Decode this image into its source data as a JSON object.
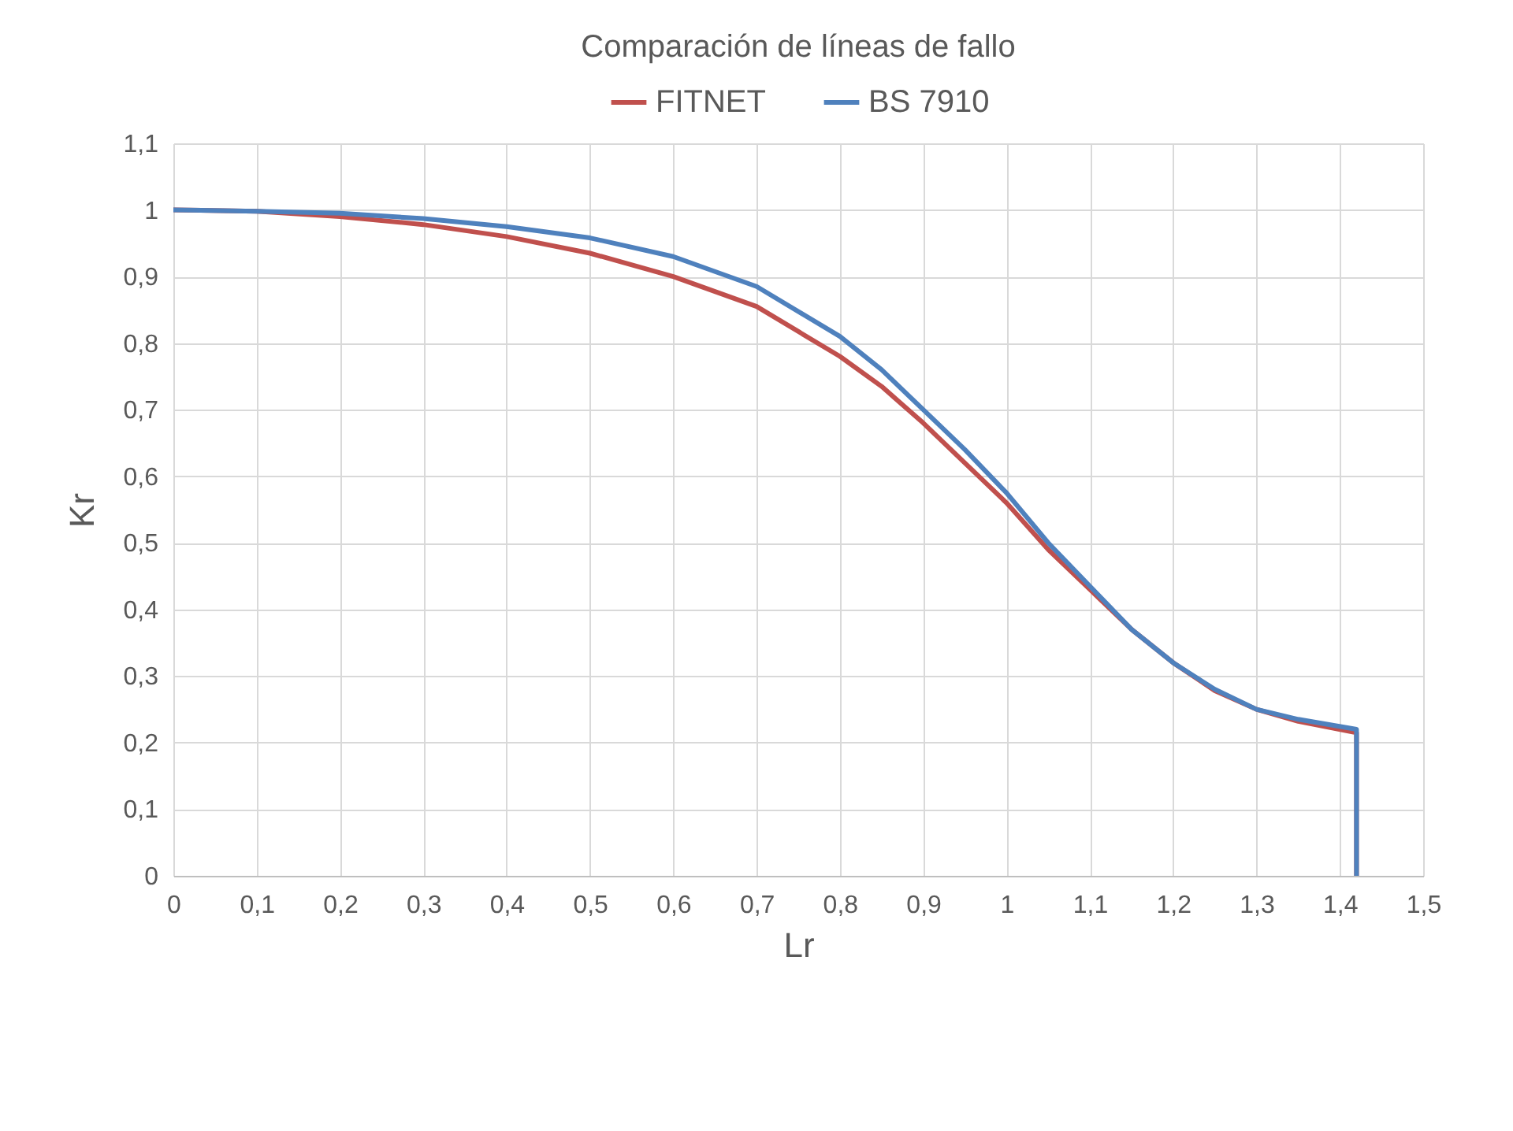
{
  "chart_data": {
    "type": "line",
    "title": "Comparación de líneas de fallo",
    "xlabel": "Lr",
    "ylabel": "Kr",
    "series": [
      {
        "name": "FITNET",
        "color": "#c0504d",
        "x": [
          0,
          0.1,
          0.2,
          0.3,
          0.4,
          0.5,
          0.6,
          0.7,
          0.8,
          0.85,
          0.9,
          0.95,
          1.0,
          1.05,
          1.1,
          1.15,
          1.2,
          1.25,
          1.3,
          1.35,
          1.42,
          1.42
        ],
        "values": [
          1,
          0.998,
          0.99,
          0.978,
          0.96,
          0.935,
          0.9,
          0.855,
          0.78,
          0.735,
          0.68,
          0.62,
          0.56,
          0.49,
          0.43,
          0.37,
          0.32,
          0.278,
          0.25,
          0.232,
          0.215,
          0
        ]
      },
      {
        "name": "BS 7910",
        "color": "#4f81bd",
        "x": [
          0,
          0.1,
          0.2,
          0.3,
          0.4,
          0.5,
          0.6,
          0.7,
          0.8,
          0.85,
          0.9,
          0.95,
          1.0,
          1.05,
          1.1,
          1.15,
          1.2,
          1.25,
          1.3,
          1.35,
          1.42,
          1.42
        ],
        "values": [
          1,
          0.998,
          0.995,
          0.987,
          0.975,
          0.958,
          0.93,
          0.885,
          0.81,
          0.76,
          0.7,
          0.64,
          0.575,
          0.5,
          0.435,
          0.37,
          0.32,
          0.28,
          0.25,
          0.235,
          0.22,
          0
        ]
      }
    ],
    "xlim": [
      0,
      1.5
    ],
    "ylim": [
      0,
      1.1
    ],
    "xticks": [
      0,
      {
        "value": 0.1,
        "label": "0,1"
      },
      {
        "value": 0.2,
        "label": "0,2"
      },
      {
        "value": 0.3,
        "label": "0,3"
      },
      {
        "value": 0.4,
        "label": "0,4"
      },
      {
        "value": 0.5,
        "label": "0,5"
      },
      {
        "value": 0.6,
        "label": "0,6"
      },
      {
        "value": 0.7,
        "label": "0,7"
      },
      {
        "value": 0.8,
        "label": "0,8"
      },
      {
        "value": 0.9,
        "label": "0,9"
      },
      1,
      {
        "value": 1.1,
        "label": "1,1"
      },
      {
        "value": 1.2,
        "label": "1,2"
      },
      {
        "value": 1.3,
        "label": "1,3"
      },
      {
        "value": 1.4,
        "label": "1,4"
      },
      {
        "value": 1.5,
        "label": "1,5"
      }
    ],
    "yticks": [
      0,
      {
        "value": 0.1,
        "label": "0,1"
      },
      {
        "value": 0.2,
        "label": "0,2"
      },
      {
        "value": 0.3,
        "label": "0,3"
      },
      {
        "value": 0.4,
        "label": "0,4"
      },
      {
        "value": 0.5,
        "label": "0,5"
      },
      {
        "value": 0.6,
        "label": "0,6"
      },
      {
        "value": 0.7,
        "label": "0,7"
      },
      {
        "value": 0.8,
        "label": "0,8"
      },
      {
        "value": 0.9,
        "label": "0,9"
      },
      1,
      {
        "value": 1.1,
        "label": "1,1"
      }
    ],
    "grid": true,
    "legend": "top",
    "line_style": "solid",
    "marker": "none"
  }
}
